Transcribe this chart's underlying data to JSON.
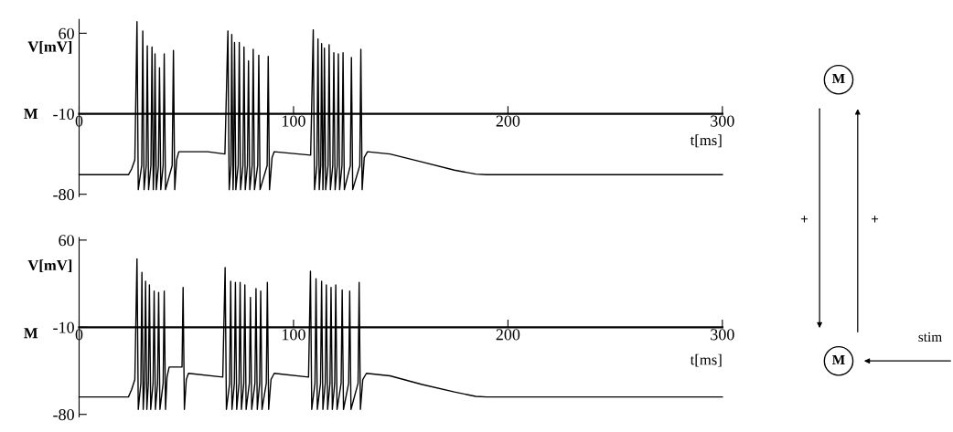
{
  "chart_data": [
    {
      "type": "line",
      "ylabel": "V[mV]",
      "xlabel": "t[ms]",
      "annotations": [
        "M"
      ],
      "xlim": [
        0,
        300
      ],
      "xticks": [
        0,
        100,
        200,
        300
      ],
      "ylim": [
        -82,
        72
      ],
      "yticks": [
        60,
        -10,
        -80
      ],
      "grid": false,
      "legend": false,
      "tick_labels": "xy",
      "series": [
        {
          "color": "#000000",
          "x": [
            0,
            23,
            24.5,
            26,
            27,
            27.6,
            29.2,
            29.7,
            30.3,
            31.3,
            31.8,
            32.4,
            33.5,
            34,
            34.6,
            35,
            35.4,
            36,
            37,
            37.5,
            38.1,
            39.2,
            39.7,
            40.3,
            43.4,
            44,
            44.6,
            45.5,
            46.5,
            60,
            68,
            69.4,
            70,
            70.8,
            71.2,
            71.8,
            72.1,
            72.5,
            73.1,
            74.2,
            74.7,
            75.3,
            76.4,
            76.9,
            77.5,
            78.5,
            79,
            79.6,
            80.7,
            81.2,
            81.8,
            83.3,
            83.8,
            84.4,
            87.7,
            88.2,
            88.8,
            90,
            91,
            108,
            109.2,
            109.8,
            110.9,
            111.4,
            112,
            112.7,
            113.1,
            113.7,
            114,
            114.4,
            115,
            116.1,
            116.6,
            117.2,
            118.3,
            118.8,
            119.4,
            120.4,
            120.9,
            121.5,
            122.6,
            123.1,
            123.7,
            126.5,
            127,
            127.6,
            130.9,
            131.4,
            132,
            133,
            134.5,
            145,
            160,
            175,
            185,
            190,
            300
          ],
          "values": [
            -63,
            -63,
            -58,
            -50,
            70,
            -76,
            -55,
            62,
            -76,
            -55,
            49,
            -76,
            -55,
            48,
            -76,
            -55,
            42,
            -76,
            -55,
            30,
            -76,
            -55,
            42,
            -76,
            -55,
            45,
            -76,
            -50,
            -43,
            -43,
            -45,
            62,
            -76,
            -55,
            59,
            -76,
            -55,
            52,
            -76,
            -55,
            52,
            -76,
            -55,
            48,
            -76,
            -55,
            36,
            -76,
            -55,
            46,
            -76,
            -55,
            41,
            -76,
            -55,
            40,
            -76,
            -48,
            -43,
            -46,
            63,
            -76,
            -55,
            55,
            -76,
            -55,
            51,
            -76,
            -55,
            47,
            -76,
            -55,
            50,
            -76,
            -55,
            43,
            -76,
            -55,
            42,
            -76,
            -55,
            43,
            -76,
            -55,
            39,
            -76,
            -55,
            46,
            -76,
            -48,
            -43,
            -45,
            -52,
            -59,
            -62.5,
            -63,
            -63
          ]
        }
      ]
    },
    {
      "type": "line",
      "ylabel": "V[mV]",
      "xlabel": "t[ms]",
      "annotations": [
        "M"
      ],
      "xlim": [
        0,
        300
      ],
      "xticks": [
        0,
        100,
        200,
        300
      ],
      "ylim": [
        -82,
        62
      ],
      "yticks": [
        60,
        -10,
        -80
      ],
      "grid": false,
      "legend": false,
      "tick_labels": "xy",
      "series": [
        {
          "color": "#000000",
          "x": [
            0,
            23,
            24.5,
            26,
            27,
            27.6,
            28.8,
            29.3,
            29.9,
            30.5,
            31,
            31.6,
            32.3,
            32.8,
            33.4,
            34.5,
            35,
            35.6,
            36.6,
            37.1,
            37.7,
            39.2,
            39.7,
            40.3,
            41,
            42,
            48,
            48.5,
            49.1,
            50,
            51,
            67,
            68.1,
            68.7,
            70.2,
            70.7,
            71.3,
            72.4,
            72.9,
            73.5,
            74.6,
            75.1,
            75.7,
            76.8,
            77.3,
            77.9,
            79.4,
            79.9,
            80.5,
            82,
            82.5,
            83.1,
            84.2,
            84.7,
            85.3,
            87.3,
            87.8,
            88.4,
            89.5,
            91,
            107,
            107.9,
            108.5,
            110,
            110.5,
            111.1,
            112.6,
            113.1,
            113.7,
            114.8,
            115.3,
            115.9,
            117,
            117.5,
            118.1,
            119.2,
            119.7,
            120.3,
            122.2,
            122.7,
            123.3,
            125.7,
            126.2,
            126.8,
            130.1,
            130.6,
            131.2,
            132.3,
            134,
            145,
            160,
            175,
            185,
            190,
            300
          ],
          "values": [
            -66,
            -66,
            -60,
            -52,
            45,
            -76,
            -55,
            34,
            -76,
            -55,
            27,
            -76,
            -55,
            24,
            -76,
            -55,
            19,
            -76,
            -55,
            18,
            -76,
            -55,
            19,
            -76,
            -50,
            -42,
            -42,
            22,
            -76,
            -52,
            -47,
            -50,
            38,
            -76,
            -55,
            27,
            -76,
            -55,
            26,
            -76,
            -55,
            26,
            -76,
            -55,
            24,
            -76,
            -55,
            14,
            -76,
            -55,
            21,
            -76,
            -55,
            19,
            -76,
            -55,
            26,
            -76,
            -52,
            -47,
            -50,
            35,
            -76,
            -55,
            29,
            -76,
            -55,
            27,
            -76,
            -55,
            24,
            -76,
            -55,
            22,
            -76,
            -55,
            24,
            -76,
            -55,
            20,
            -76,
            -55,
            19,
            -76,
            -55,
            26,
            -76,
            -52,
            -47,
            -49,
            -56,
            -62,
            -65.5,
            -66,
            -66
          ]
        }
      ]
    },
    {
      "type": "other",
      "annotations": [
        "M",
        "M",
        "+",
        "+",
        "stim"
      ]
    }
  ]
}
